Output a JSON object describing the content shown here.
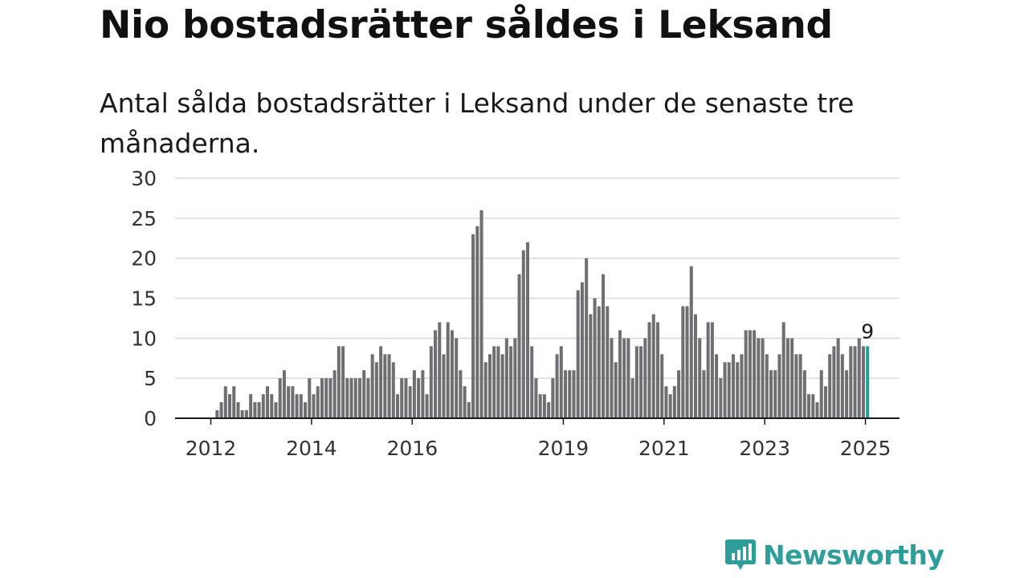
{
  "title": "Nio bostadsrätter såldes i Leksand",
  "subtitle": "Antal sålda bostadsrätter i Leksand under de senaste tre månaderna.",
  "logo": {
    "text": "Newsworthy",
    "icon": "newsworthy-bar-chart-icon"
  },
  "colors": {
    "bar": "#6e6e73",
    "highlight": "#1aa39a",
    "brand": "#2f9e9a"
  },
  "chart_data": {
    "type": "bar",
    "title": "Nio bostadsrätter såldes i Leksand",
    "subtitle": "Antal sålda bostadsrätter i Leksand under de senaste tre månaderna.",
    "xlabel": "",
    "ylabel": "",
    "ylim": [
      0,
      30
    ],
    "y_ticks": [
      0,
      5,
      10,
      15,
      20,
      25,
      30
    ],
    "grid": true,
    "x_tick_labels": [
      "2012",
      "2014",
      "2016",
      "2019",
      "2021",
      "2023",
      "2025"
    ],
    "start_month": "2012-01",
    "highlight_label": "9",
    "values": [
      0,
      1,
      2,
      4,
      3,
      4,
      2,
      1,
      1,
      3,
      2,
      2,
      3,
      4,
      3,
      2,
      5,
      6,
      4,
      4,
      3,
      3,
      2,
      5,
      3,
      4,
      5,
      5,
      5,
      6,
      9,
      9,
      5,
      5,
      5,
      5,
      6,
      5,
      8,
      7,
      9,
      8,
      8,
      7,
      3,
      5,
      5,
      4,
      6,
      5,
      6,
      3,
      9,
      11,
      12,
      8,
      12,
      11,
      10,
      6,
      4,
      2,
      23,
      24,
      26,
      7,
      8,
      9,
      9,
      8,
      10,
      9,
      10,
      18,
      21,
      22,
      9,
      5,
      3,
      3,
      2,
      5,
      8,
      9,
      6,
      6,
      6,
      16,
      17,
      20,
      13,
      15,
      14,
      18,
      14,
      10,
      7,
      11,
      10,
      10,
      5,
      9,
      9,
      10,
      12,
      13,
      12,
      8,
      4,
      3,
      4,
      6,
      14,
      14,
      19,
      13,
      10,
      6,
      12,
      12,
      8,
      5,
      7,
      7,
      8,
      7,
      8,
      11,
      11,
      11,
      10,
      10,
      8,
      6,
      6,
      8,
      12,
      10,
      10,
      8,
      8,
      6,
      3,
      3,
      2,
      6,
      4,
      8,
      9,
      10,
      8,
      6,
      9,
      9,
      10,
      9,
      9
    ]
  }
}
